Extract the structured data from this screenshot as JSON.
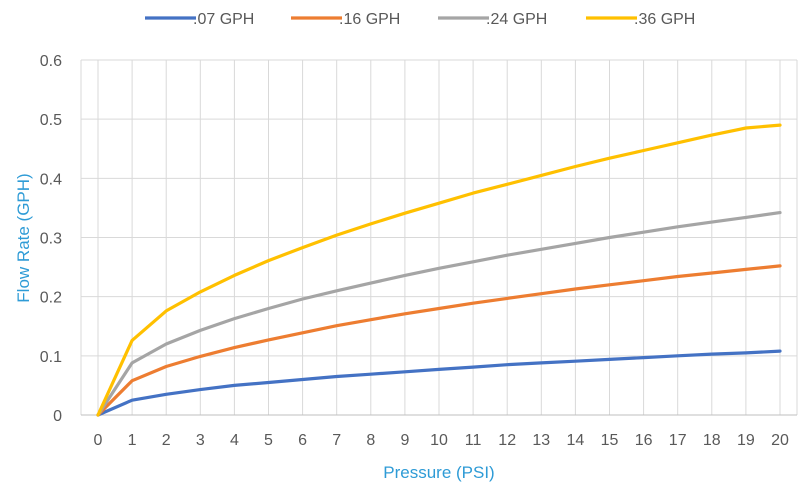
{
  "chart_data": {
    "type": "line",
    "title": "",
    "xlabel": "Pressure (PSI)",
    "ylabel": "Flow Rate (GPH)",
    "x": [
      0,
      1,
      2,
      3,
      4,
      5,
      6,
      7,
      8,
      9,
      10,
      11,
      12,
      13,
      14,
      15,
      16,
      17,
      18,
      19,
      20
    ],
    "xlim": [
      0,
      20
    ],
    "ylim": [
      0,
      0.6
    ],
    "yticks": [
      0,
      0.1,
      0.2,
      0.3,
      0.4,
      0.5,
      0.6
    ],
    "ytick_labels": [
      "0",
      "0.1",
      "0.2",
      "0.3",
      "0.4",
      "0.5",
      "0.6"
    ],
    "grid": true,
    "legend_position": "top",
    "series": [
      {
        "name": ".07 GPH",
        "color": "#4472c4",
        "values": [
          0,
          0.025,
          0.035,
          0.043,
          0.05,
          0.055,
          0.06,
          0.065,
          0.069,
          0.073,
          0.077,
          0.081,
          0.085,
          0.088,
          0.091,
          0.094,
          0.097,
          0.1,
          0.103,
          0.105,
          0.108
        ]
      },
      {
        "name": ".16 GPH",
        "color": "#ed7d31",
        "values": [
          0,
          0.058,
          0.082,
          0.099,
          0.114,
          0.127,
          0.139,
          0.151,
          0.161,
          0.171,
          0.18,
          0.189,
          0.197,
          0.205,
          0.213,
          0.22,
          0.227,
          0.234,
          0.24,
          0.246,
          0.252
        ]
      },
      {
        "name": ".24 GPH",
        "color": "#a5a5a5",
        "values": [
          0,
          0.088,
          0.12,
          0.143,
          0.163,
          0.18,
          0.196,
          0.21,
          0.223,
          0.236,
          0.248,
          0.259,
          0.27,
          0.28,
          0.29,
          0.3,
          0.309,
          0.318,
          0.326,
          0.334,
          0.342
        ]
      },
      {
        "name": ".36 GPH",
        "color": "#ffc000",
        "values": [
          0,
          0.126,
          0.176,
          0.208,
          0.236,
          0.261,
          0.283,
          0.304,
          0.323,
          0.341,
          0.358,
          0.375,
          0.39,
          0.405,
          0.42,
          0.434,
          0.447,
          0.46,
          0.473,
          0.485,
          0.49
        ]
      }
    ]
  }
}
